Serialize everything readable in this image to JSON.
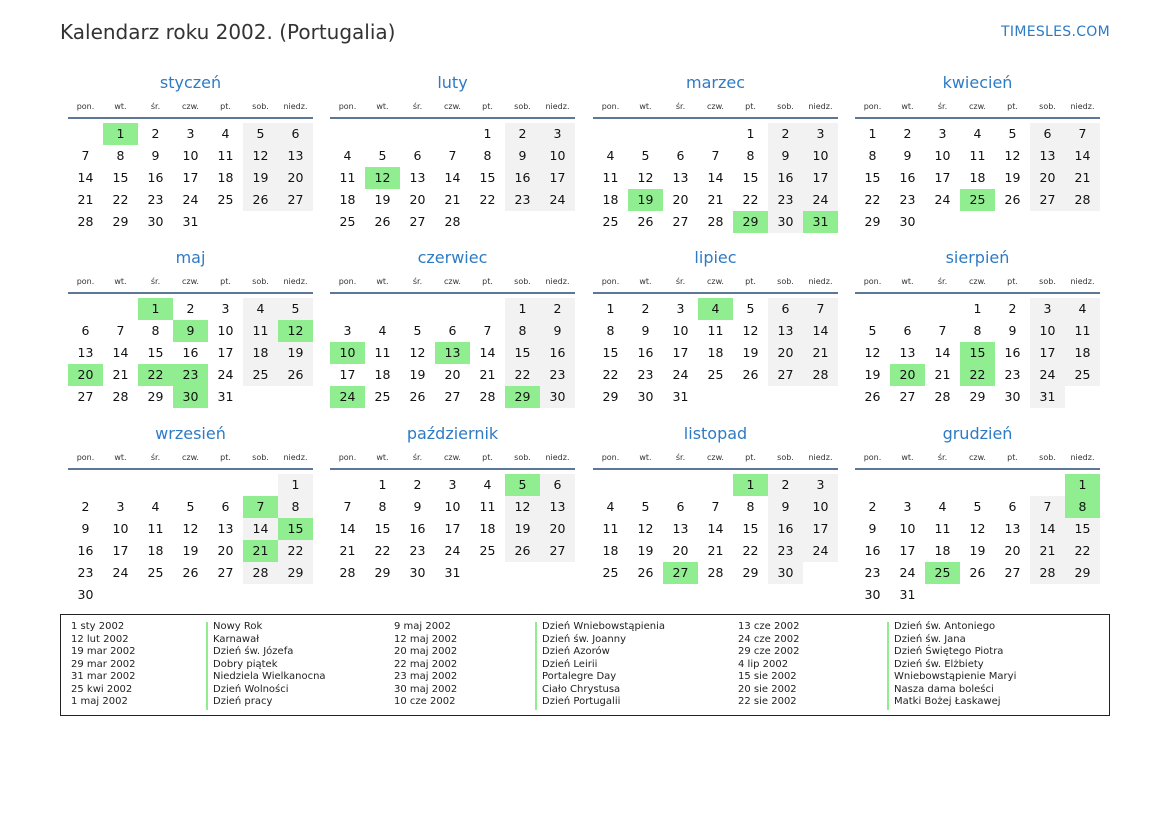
{
  "title": "Kalendarz roku 2002. (Portugalia)",
  "brand": "TIMESLES.COM",
  "weekdays": [
    "pon.",
    "wt.",
    "śr.",
    "czw.",
    "pt.",
    "sob.",
    "niedz."
  ],
  "months": [
    {
      "name": "styczeń",
      "offset": 1,
      "days": 31,
      "holidays": [
        1
      ]
    },
    {
      "name": "luty",
      "offset": 4,
      "days": 28,
      "holidays": [
        12
      ]
    },
    {
      "name": "marzec",
      "offset": 4,
      "days": 31,
      "holidays": [
        19,
        29,
        31
      ]
    },
    {
      "name": "kwiecień",
      "offset": 0,
      "days": 30,
      "holidays": [
        25
      ]
    },
    {
      "name": "maj",
      "offset": 2,
      "days": 31,
      "holidays": [
        1,
        9,
        12,
        20,
        22,
        23,
        30
      ]
    },
    {
      "name": "czerwiec",
      "offset": 5,
      "days": 30,
      "holidays": [
        10,
        13,
        24,
        29
      ]
    },
    {
      "name": "lipiec",
      "offset": 0,
      "days": 31,
      "holidays": [
        4
      ]
    },
    {
      "name": "sierpień",
      "offset": 3,
      "days": 31,
      "holidays": [
        15,
        20,
        22
      ]
    },
    {
      "name": "wrzesień",
      "offset": 6,
      "days": 30,
      "holidays": [
        7,
        15,
        21
      ]
    },
    {
      "name": "październik",
      "offset": 1,
      "days": 31,
      "holidays": [
        5
      ]
    },
    {
      "name": "listopad",
      "offset": 4,
      "days": 30,
      "holidays": [
        1,
        27
      ]
    },
    {
      "name": "grudzień",
      "offset": 6,
      "days": 31,
      "holidays": [
        1,
        8,
        25
      ]
    }
  ],
  "holidays": [
    {
      "date": "1 sty 2002",
      "name": "Nowy Rok"
    },
    {
      "date": "12 lut 2002",
      "name": "Karnawał"
    },
    {
      "date": "19 mar 2002",
      "name": "Dzień św. Józefa"
    },
    {
      "date": "29 mar 2002",
      "name": "Dobry piątek"
    },
    {
      "date": "31 mar 2002",
      "name": "Niedziela Wielkanocna"
    },
    {
      "date": "25 kwi 2002",
      "name": "Dzień Wolności"
    },
    {
      "date": "1 maj 2002",
      "name": "Dzień pracy"
    },
    {
      "date": "9 maj 2002",
      "name": "Dzień Wniebowstąpienia"
    },
    {
      "date": "12 maj 2002",
      "name": "Dzień św. Joanny"
    },
    {
      "date": "20 maj 2002",
      "name": "Dzień Azorów"
    },
    {
      "date": "22 maj 2002",
      "name": "Dzień Leirii"
    },
    {
      "date": "23 maj 2002",
      "name": "Portalegre Day"
    },
    {
      "date": "30 maj 2002",
      "name": "Ciało Chrystusa"
    },
    {
      "date": "10 cze 2002",
      "name": "Dzień Portugalii"
    },
    {
      "date": "13 cze 2002",
      "name": "Dzień św. Antoniego"
    },
    {
      "date": "24 cze 2002",
      "name": "Dzień św. Jana"
    },
    {
      "date": "29 cze 2002",
      "name": "Dzień Świętego Piotra"
    },
    {
      "date": "4 lip 2002",
      "name": "Dzień św. Elżbiety"
    },
    {
      "date": "15 sie 2002",
      "name": "Wniebowstąpienie Maryi"
    },
    {
      "date": "20 sie 2002",
      "name": "Nasza dama boleści"
    },
    {
      "date": "22 sie 2002",
      "name": "Matki Bożej Łaskawej"
    }
  ]
}
